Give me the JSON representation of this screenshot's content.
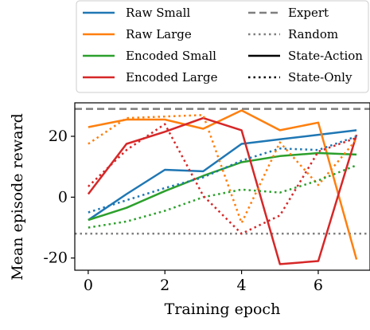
{
  "chart_data": {
    "type": "line",
    "xlabel": "Training epoch",
    "ylabel": "Mean episode reward",
    "xlim": [
      -0.35,
      7.35
    ],
    "ylim": [
      -24,
      31
    ],
    "xticks": [
      0,
      2,
      4,
      6
    ],
    "yticks": [
      -20,
      0,
      20
    ],
    "ytick_labels": [
      "-20",
      "0",
      "20"
    ],
    "grid": false,
    "legend_placement": "top, above plot",
    "legend_entries": [
      {
        "label": "Raw Small",
        "color": "#1f77b4",
        "style": "solid"
      },
      {
        "label": "Raw Large",
        "color": "#ff7f0e",
        "style": "solid"
      },
      {
        "label": "Encoded Small",
        "color": "#2ca02c",
        "style": "solid"
      },
      {
        "label": "Encoded Large",
        "color": "#d62728",
        "style": "solid"
      },
      {
        "label": "Expert",
        "color": "#7f7f7f",
        "style": "dashed"
      },
      {
        "label": "Random",
        "color": "#7f7f7f",
        "style": "dotted"
      },
      {
        "label": "State-Action",
        "color": "#000000",
        "style": "solid"
      },
      {
        "label": "State-Only",
        "color": "#000000",
        "style": "dotted"
      }
    ],
    "reference_lines": [
      {
        "name": "Expert",
        "y": 29,
        "color": "#7f7f7f",
        "style": "dashed"
      },
      {
        "name": "Random",
        "y": -12,
        "color": "#7f7f7f",
        "style": "dotted"
      }
    ],
    "x": [
      0,
      1,
      2,
      3,
      4,
      5,
      6,
      7
    ],
    "series": [
      {
        "name": "Raw Small",
        "variant": "State-Action",
        "color": "#1f77b4",
        "style": "solid",
        "values": [
          -7.5,
          1,
          9,
          8.5,
          17.5,
          19,
          20.5,
          22
        ]
      },
      {
        "name": "Raw Large",
        "variant": "State-Action",
        "color": "#ff7f0e",
        "style": "solid",
        "values": [
          23,
          25.5,
          25.5,
          22.5,
          28.5,
          22,
          24.5,
          -20.5
        ]
      },
      {
        "name": "Encoded Small",
        "variant": "State-Action",
        "color": "#2ca02c",
        "style": "solid",
        "values": [
          -7.5,
          -3.5,
          2,
          7,
          11.5,
          13.5,
          14.5,
          14
        ]
      },
      {
        "name": "Encoded Large",
        "variant": "State-Action",
        "color": "#d62728",
        "style": "solid",
        "values": [
          1,
          17.5,
          21.5,
          26,
          22,
          -22,
          -21,
          20.5
        ]
      },
      {
        "name": "Raw Small",
        "variant": "State-Only",
        "color": "#1f77b4",
        "style": "dotted",
        "values": [
          -5,
          -1,
          3,
          6.5,
          12,
          16,
          15.5,
          20
        ]
      },
      {
        "name": "Raw Large",
        "variant": "State-Only",
        "color": "#ff7f0e",
        "style": "dotted",
        "values": [
          17.5,
          26,
          26.5,
          27,
          -8.5,
          18,
          4,
          19
        ]
      },
      {
        "name": "Encoded Small",
        "variant": "State-Only",
        "color": "#2ca02c",
        "style": "dotted",
        "values": [
          -10,
          -8,
          -4.5,
          0,
          2.5,
          1.5,
          5.5,
          10.5
        ]
      },
      {
        "name": "Encoded Large",
        "variant": "State-Only",
        "color": "#d62728",
        "style": "dotted",
        "values": [
          3.5,
          15.5,
          24,
          0.5,
          -12,
          -6,
          15,
          19.5
        ]
      }
    ]
  }
}
